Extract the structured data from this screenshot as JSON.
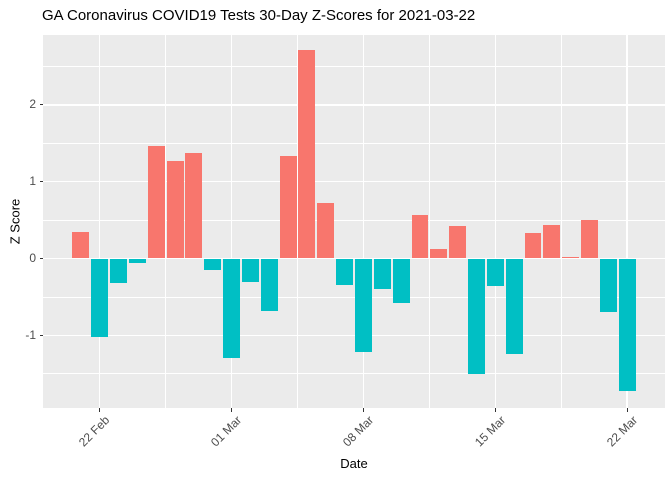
{
  "chart_data": {
    "type": "bar",
    "title": "GA Coronavirus COVID19 Tests 30-Day Z-Scores for 2021-03-22",
    "xlabel": "Date",
    "ylabel": "Z Score",
    "x": [
      "2021-02-21",
      "2021-02-22",
      "2021-02-23",
      "2021-02-24",
      "2021-02-25",
      "2021-02-26",
      "2021-02-27",
      "2021-02-28",
      "2021-03-01",
      "2021-03-02",
      "2021-03-03",
      "2021-03-04",
      "2021-03-05",
      "2021-03-06",
      "2021-03-07",
      "2021-03-08",
      "2021-03-09",
      "2021-03-10",
      "2021-03-11",
      "2021-03-12",
      "2021-03-13",
      "2021-03-14",
      "2021-03-15",
      "2021-03-16",
      "2021-03-17",
      "2021-03-18",
      "2021-03-19",
      "2021-03-20",
      "2021-03-21",
      "2021-03-22"
    ],
    "values": [
      0.34,
      -1.02,
      -0.32,
      -0.06,
      1.47,
      1.27,
      1.38,
      -0.15,
      -1.3,
      -0.31,
      -0.68,
      1.33,
      2.72,
      0.72,
      -0.35,
      -1.22,
      -0.4,
      -0.58,
      0.56,
      0.13,
      0.42,
      -1.51,
      -0.36,
      -1.24,
      0.33,
      0.44,
      0.02,
      0.5,
      -0.7,
      -1.73
    ],
    "ylim": [
      -1.95,
      2.91
    ],
    "yticks": [
      -1,
      0,
      1,
      2
    ],
    "yticks_minor": [
      -1.5,
      -0.5,
      0.5,
      1.5,
      2.5
    ],
    "xticks": [
      {
        "label": "22 Feb",
        "day_index": 1
      },
      {
        "label": "01 Mar",
        "day_index": 8
      },
      {
        "label": "08 Mar",
        "day_index": 15
      },
      {
        "label": "15 Mar",
        "day_index": 22
      },
      {
        "label": "22 Mar",
        "day_index": 29
      }
    ],
    "grid": true,
    "legend": "none",
    "colors": {
      "positive": "#F8766D",
      "negative": "#00BFC4",
      "panel_bg": "#EBEBEB",
      "grid": "#FFFFFF",
      "axis_text": "#4D4D4D",
      "tick_mark": "#333333",
      "title_text": "#000000"
    }
  }
}
